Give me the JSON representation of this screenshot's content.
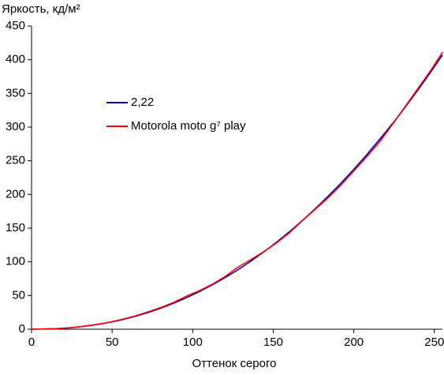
{
  "chart_data": {
    "type": "line",
    "y_label": "Яркость, кд/м²",
    "x_label": "Оттенок серого",
    "x": [
      0,
      16,
      24,
      32,
      40,
      48,
      56,
      64,
      72,
      80,
      88,
      96,
      104,
      112,
      120,
      128,
      136,
      144,
      152,
      160,
      168,
      176,
      184,
      192,
      200,
      208,
      216,
      224,
      232,
      240,
      248,
      255
    ],
    "series": [
      {
        "name": "2,22",
        "color": "#0000c0",
        "values": [
          0,
          0.9,
          2.1,
          4.1,
          6.7,
          10.0,
          14.0,
          18.9,
          24.5,
          31.0,
          38.3,
          46.6,
          55.6,
          65.5,
          76.4,
          88.1,
          100.8,
          114.5,
          129.1,
          144.6,
          161.2,
          178.7,
          197.2,
          216.8,
          237.3,
          258.9,
          281.6,
          305.2,
          330.0,
          355.8,
          382.6,
          407
        ]
      },
      {
        "name": "Motorola moto g⁷ play",
        "color": "#ff0000",
        "values": [
          0,
          0.8,
          2.0,
          4.3,
          7.0,
          10.2,
          14.5,
          19.5,
          25.5,
          32.0,
          39.5,
          49.0,
          57.0,
          66.5,
          78.0,
          92.0,
          103.0,
          115.0,
          128.0,
          143.0,
          161.0,
          178.0,
          195.0,
          214.0,
          235.0,
          256.0,
          278.0,
          304.0,
          331.0,
          358.0,
          385.0,
          411
        ]
      }
    ],
    "xlim": [
      0,
      255
    ],
    "ylim": [
      0,
      450
    ],
    "xticks": [
      0,
      50,
      100,
      150,
      200,
      250
    ],
    "yticks": [
      0,
      50,
      100,
      150,
      200,
      250,
      300,
      350,
      400,
      450
    ],
    "grid": false
  }
}
